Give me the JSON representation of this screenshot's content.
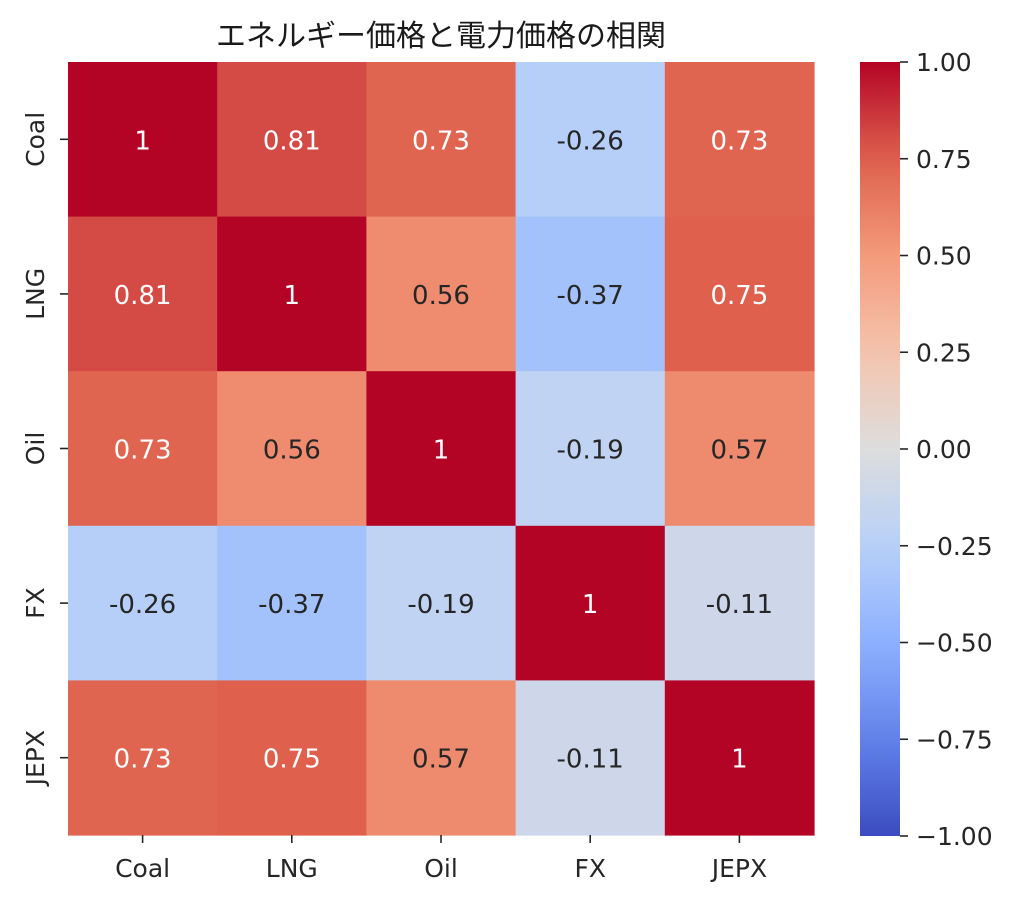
{
  "chart_data": {
    "type": "heatmap",
    "title": "エネルギー価格と電力価格の相関",
    "xlabel": "",
    "ylabel": "",
    "x_categories": [
      "Coal",
      "LNG",
      "Oil",
      "FX",
      "JEPX"
    ],
    "y_categories": [
      "Coal",
      "LNG",
      "Oil",
      "FX",
      "JEPX"
    ],
    "values": [
      [
        1.0,
        0.81,
        0.73,
        -0.26,
        0.73
      ],
      [
        0.81,
        1.0,
        0.56,
        -0.37,
        0.75
      ],
      [
        0.73,
        0.56,
        1.0,
        -0.19,
        0.57
      ],
      [
        -0.26,
        -0.37,
        -0.19,
        1.0,
        -0.11
      ],
      [
        0.73,
        0.75,
        0.57,
        -0.11,
        1.0
      ]
    ],
    "annotations": [
      [
        "1",
        "0.81",
        "0.73",
        "-0.26",
        "0.73"
      ],
      [
        "0.81",
        "1",
        "0.56",
        "-0.37",
        "0.75"
      ],
      [
        "0.73",
        "0.56",
        "1",
        "-0.19",
        "0.57"
      ],
      [
        "-0.26",
        "-0.37",
        "-0.19",
        "1",
        "-0.11"
      ],
      [
        "0.73",
        "0.75",
        "0.57",
        "-0.11",
        "1"
      ]
    ],
    "colormap": "coolwarm",
    "vmin": -1.0,
    "vmax": 1.0,
    "colorbar": {
      "ticks": [
        1.0,
        0.75,
        0.5,
        0.25,
        0.0,
        -0.25,
        -0.5,
        -0.75,
        -1.0
      ],
      "tick_labels": [
        "1.00",
        "0.75",
        "0.50",
        "0.25",
        "0.00",
        "−0.25",
        "−0.50",
        "−0.75",
        "−1.00"
      ]
    }
  }
}
